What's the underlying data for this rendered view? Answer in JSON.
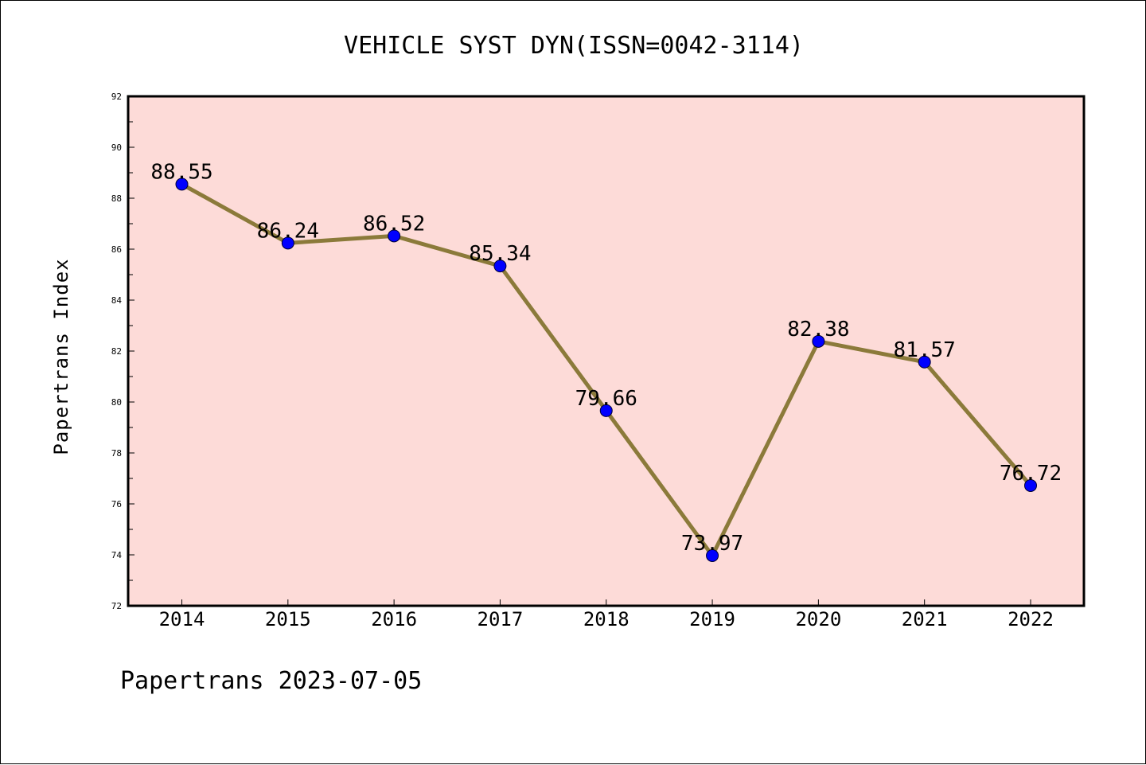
{
  "chart_data": {
    "type": "line",
    "title": "VEHICLE SYST DYN(ISSN=0042-3114)",
    "xlabel": "",
    "ylabel": "Papertrans Index",
    "categories": [
      "2014",
      "2015",
      "2016",
      "2017",
      "2018",
      "2019",
      "2020",
      "2021",
      "2022"
    ],
    "series": [
      {
        "values": [
          88.55,
          86.24,
          86.52,
          85.34,
          79.66,
          73.97,
          82.38,
          81.57,
          76.72
        ]
      }
    ],
    "data_labels": [
      "88.55",
      "86.24",
      "86.52",
      "85.34",
      "79.66",
      "73.97",
      "82.38",
      "81.57",
      "76.72"
    ],
    "ylim": [
      72,
      92
    ],
    "yticks": [
      "72",
      "74",
      "76",
      "78",
      "80",
      "82",
      "84",
      "86",
      "88",
      "90",
      "92"
    ],
    "grid": false,
    "colors": {
      "plot_background": "#fddbd8",
      "line": "#8b7a3a",
      "marker": "#0000ff"
    }
  },
  "footer": "Papertrans 2023-07-05"
}
